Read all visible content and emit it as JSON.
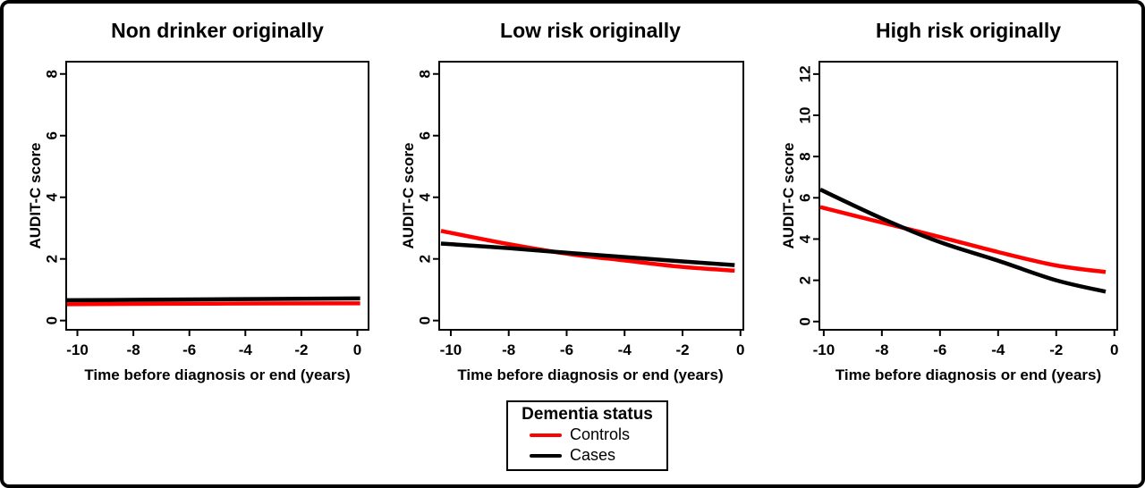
{
  "figure": {
    "background": "#ffffff",
    "border_color": "#000000",
    "line_colors": {
      "controls": "#ff0000",
      "cases": "#000000"
    }
  },
  "legend": {
    "title": "Dementia status",
    "position": "bottom-center",
    "items": [
      {
        "label": "Controls",
        "color": "#ff0000"
      },
      {
        "label": "Cases",
        "color": "#000000"
      }
    ]
  },
  "chart_data": [
    {
      "type": "line",
      "title": "Non drinker originally",
      "xlabel": "Time before diagnosis or end (years)",
      "ylabel": "AUDIT-C score",
      "x_range": [
        -10.4,
        0.4
      ],
      "y_range": [
        -0.3,
        8.4
      ],
      "x_ticks": [
        -10,
        -8,
        -6,
        -4,
        -2,
        0
      ],
      "y_ticks": [
        0,
        2,
        4,
        6,
        8
      ],
      "grid": false,
      "series": [
        {
          "name": "Controls",
          "color": "#ff0000",
          "points": [
            [
              -10.37,
              0.53
            ],
            [
              -5.1,
              0.55
            ],
            [
              0.1,
              0.56
            ]
          ]
        },
        {
          "name": "Cases",
          "color": "#000000",
          "points": [
            [
              -10.37,
              0.66
            ],
            [
              -5.1,
              0.69
            ],
            [
              0.1,
              0.72
            ]
          ]
        }
      ]
    },
    {
      "type": "line",
      "title": "Low risk originally",
      "xlabel": "Time before diagnosis or end (years)",
      "ylabel": "AUDIT-C score",
      "x_range": [
        -10.4,
        0.1
      ],
      "y_range": [
        -0.3,
        8.4
      ],
      "x_ticks": [
        -10,
        -8,
        -6,
        -4,
        -2,
        0
      ],
      "y_ticks": [
        0,
        2,
        4,
        6,
        8
      ],
      "grid": false,
      "series": [
        {
          "name": "Controls",
          "color": "#ff0000",
          "points": [
            [
              -10.34,
              2.91
            ],
            [
              -8,
              2.48
            ],
            [
              -6,
              2.17
            ],
            [
              -4,
              1.95
            ],
            [
              -2,
              1.74
            ],
            [
              -0.2,
              1.62
            ]
          ]
        },
        {
          "name": "Cases",
          "color": "#000000",
          "points": [
            [
              -10.34,
              2.5
            ],
            [
              -8,
              2.35
            ],
            [
              -6,
              2.2
            ],
            [
              -4,
              2.06
            ],
            [
              -2,
              1.92
            ],
            [
              -0.2,
              1.8
            ]
          ]
        }
      ]
    },
    {
      "type": "line",
      "title": "High risk originally",
      "xlabel": "Time before diagnosis or end (years)",
      "ylabel": "AUDIT-C score",
      "x_range": [
        -10.15,
        0.1
      ],
      "y_range": [
        -0.4,
        12.6
      ],
      "x_ticks": [
        -10,
        -8,
        -6,
        -4,
        -2,
        0
      ],
      "y_ticks": [
        0,
        2,
        4,
        6,
        8,
        10,
        12
      ],
      "grid": false,
      "series": [
        {
          "name": "Controls",
          "color": "#ff0000",
          "points": [
            [
              -10.12,
              5.55
            ],
            [
              -8,
              4.8
            ],
            [
              -6,
              4.1
            ],
            [
              -4,
              3.37
            ],
            [
              -2,
              2.72
            ],
            [
              -0.3,
              2.4
            ]
          ]
        },
        {
          "name": "Cases",
          "color": "#000000",
          "points": [
            [
              -10.12,
              6.4
            ],
            [
              -8,
              5.0
            ],
            [
              -6,
              3.85
            ],
            [
              -4,
              2.95
            ],
            [
              -2,
              2.0
            ],
            [
              -0.3,
              1.45
            ]
          ]
        }
      ]
    }
  ]
}
